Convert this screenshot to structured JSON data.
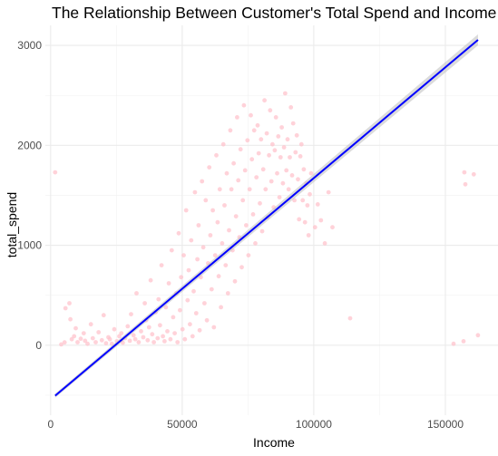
{
  "chart_data": {
    "type": "scatter",
    "title": "The Relationship Between Customer's Total Spend and Income",
    "xlabel": "Income",
    "ylabel": "total_spend",
    "xlim": [
      -2000,
      170000
    ],
    "ylim": [
      -700,
      3200
    ],
    "x_ticks": [
      0,
      50000,
      100000,
      150000
    ],
    "x_tick_labels": [
      "0",
      "50000",
      "100000",
      "150000"
    ],
    "y_ticks": [
      0,
      1000,
      2000,
      3000
    ],
    "y_tick_labels": [
      "0",
      "1000",
      "2000",
      "3000"
    ],
    "grid": true,
    "point_color": "#FFC0CB",
    "trend_color": "#0000FF",
    "ribbon_color": "#BEBEBE",
    "trend_line": {
      "x": [
        1730,
        162397
      ],
      "y": [
        -505,
        3055
      ],
      "band_halfwidth": [
        20,
        55
      ]
    },
    "points": [
      [
        1730,
        1730
      ],
      [
        4023,
        8
      ],
      [
        5305,
        28
      ],
      [
        5648,
        370
      ],
      [
        7144,
        420
      ],
      [
        7500,
        260
      ],
      [
        8028,
        60
      ],
      [
        8940,
        90
      ],
      [
        9548,
        170
      ],
      [
        10245,
        30
      ],
      [
        11448,
        65
      ],
      [
        12571,
        120
      ],
      [
        13084,
        45
      ],
      [
        14045,
        15
      ],
      [
        15287,
        210
      ],
      [
        16014,
        70
      ],
      [
        17117,
        30
      ],
      [
        18222,
        130
      ],
      [
        19485,
        50
      ],
      [
        20180,
        300
      ],
      [
        21063,
        20
      ],
      [
        21955,
        80
      ],
      [
        22507,
        60
      ],
      [
        23272,
        15
      ],
      [
        24206,
        160
      ],
      [
        25176,
        40
      ],
      [
        26095,
        90
      ],
      [
        26872,
        120
      ],
      [
        27421,
        25
      ],
      [
        28332,
        70
      ],
      [
        29315,
        190
      ],
      [
        30096,
        45
      ],
      [
        30560,
        310
      ],
      [
        31497,
        100
      ],
      [
        32146,
        60
      ],
      [
        32632,
        520
      ],
      [
        33456,
        30
      ],
      [
        34373,
        140
      ],
      [
        35178,
        80
      ],
      [
        35790,
        420
      ],
      [
        36317,
        250
      ],
      [
        36864,
        50
      ],
      [
        37401,
        180
      ],
      [
        38006,
        650
      ],
      [
        38620,
        110
      ],
      [
        39229,
        30
      ],
      [
        39922,
        330
      ],
      [
        40658,
        70
      ],
      [
        41021,
        460
      ],
      [
        41580,
        200
      ],
      [
        42160,
        800
      ],
      [
        42667,
        90
      ],
      [
        43275,
        40
      ],
      [
        43824,
        380
      ],
      [
        44375,
        140
      ],
      [
        44906,
        620
      ],
      [
        45528,
        60
      ],
      [
        46014,
        950
      ],
      [
        46581,
        280
      ],
      [
        47148,
        120
      ],
      [
        47742,
        520
      ],
      [
        48207,
        30
      ],
      [
        48684,
        1120
      ],
      [
        49165,
        350
      ],
      [
        49605,
        680
      ],
      [
        50124,
        160
      ],
      [
        50559,
        900
      ],
      [
        51013,
        60
      ],
      [
        51498,
        1350
      ],
      [
        52035,
        450
      ],
      [
        52475,
        750
      ],
      [
        52932,
        210
      ],
      [
        53439,
        1050
      ],
      [
        53933,
        90
      ],
      [
        54355,
        540
      ],
      [
        54842,
        1530
      ],
      [
        55309,
        320
      ],
      [
        55764,
        860
      ],
      [
        56220,
        1200
      ],
      [
        56628,
        150
      ],
      [
        57095,
        680
      ],
      [
        57536,
        1640
      ],
      [
        58015,
        980
      ],
      [
        58475,
        420
      ],
      [
        58927,
        1450
      ],
      [
        59380,
        250
      ],
      [
        59822,
        820
      ],
      [
        60282,
        1780
      ],
      [
        60700,
        1100
      ],
      [
        61175,
        560
      ],
      [
        61636,
        1350
      ],
      [
        62058,
        180
      ],
      [
        62509,
        900
      ],
      [
        62971,
        1900
      ],
      [
        63440,
        1230
      ],
      [
        63860,
        690
      ],
      [
        64280,
        1560
      ],
      [
        64722,
        380
      ],
      [
        65181,
        1020
      ],
      [
        65620,
        2010
      ],
      [
        66060,
        1400
      ],
      [
        66514,
        800
      ],
      [
        66940,
        1720
      ],
      [
        67390,
        520
      ],
      [
        67810,
        1150
      ],
      [
        68280,
        2150
      ],
      [
        68690,
        1560
      ],
      [
        69140,
        950
      ],
      [
        69560,
        1820
      ],
      [
        70030,
        640
      ],
      [
        70470,
        1290
      ],
      [
        70880,
        2280
      ],
      [
        71300,
        1650
      ],
      [
        71720,
        1080
      ],
      [
        72160,
        1960
      ],
      [
        72610,
        780
      ],
      [
        73030,
        1450
      ],
      [
        73460,
        2400
      ],
      [
        73910,
        1750
      ],
      [
        74320,
        1200
      ],
      [
        74780,
        2050
      ],
      [
        75190,
        900
      ],
      [
        75610,
        1560
      ],
      [
        76060,
        2300
      ],
      [
        76480,
        1860
      ],
      [
        76920,
        1310
      ],
      [
        77360,
        2150
      ],
      [
        77790,
        1020
      ],
      [
        78210,
        1680
      ],
      [
        78660,
        2200
      ],
      [
        79070,
        1920
      ],
      [
        79520,
        1420
      ],
      [
        79950,
        2060
      ],
      [
        80390,
        1140
      ],
      [
        80810,
        1760
      ],
      [
        81270,
        2450
      ],
      [
        81680,
        1560
      ],
      [
        82140,
        2120
      ],
      [
        82580,
        1280
      ],
      [
        83010,
        1900
      ],
      [
        83430,
        2350
      ],
      [
        83880,
        1640
      ],
      [
        84320,
        2010
      ],
      [
        84750,
        1380
      ],
      [
        85180,
        1950
      ],
      [
        85620,
        2280
      ],
      [
        86070,
        1720
      ],
      [
        86510,
        2090
      ],
      [
        86950,
        1480
      ],
      [
        87380,
        1880
      ],
      [
        87820,
        2180
      ],
      [
        88260,
        1620
      ],
      [
        88700,
        1980
      ],
      [
        89150,
        2520
      ],
      [
        89580,
        1750
      ],
      [
        90020,
        2060
      ],
      [
        90460,
        1560
      ],
      [
        90880,
        1880
      ],
      [
        91320,
        2380
      ],
      [
        91760,
        1700
      ],
      [
        92180,
        2220
      ],
      [
        92640,
        1450
      ],
      [
        93080,
        1930
      ],
      [
        93540,
        2100
      ],
      [
        93980,
        1660
      ],
      [
        94420,
        1260
      ],
      [
        94890,
        1890
      ],
      [
        95320,
        2010
      ],
      [
        95780,
        1450
      ],
      [
        96210,
        1760
      ],
      [
        96660,
        1230
      ],
      [
        97120,
        1620
      ],
      [
        97580,
        1400
      ],
      [
        98040,
        1100
      ],
      [
        98490,
        1510
      ],
      [
        99000,
        1720
      ],
      [
        100460,
        1180
      ],
      [
        101520,
        1410
      ],
      [
        102700,
        1250
      ],
      [
        104200,
        1020
      ],
      [
        105600,
        1530
      ],
      [
        107100,
        1180
      ],
      [
        113800,
        270
      ],
      [
        153100,
        15
      ],
      [
        156900,
        40
      ],
      [
        157200,
        1730
      ],
      [
        157600,
        1610
      ],
      [
        160800,
        1710
      ],
      [
        162397,
        100
      ]
    ]
  }
}
